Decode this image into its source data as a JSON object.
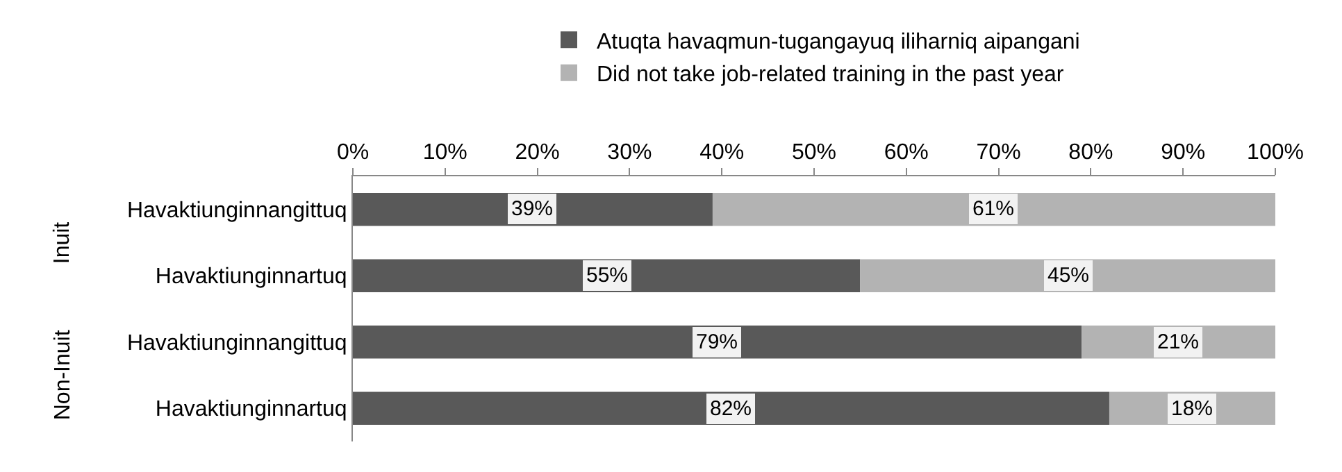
{
  "chart_data": {
    "type": "bar",
    "orientation": "horizontal",
    "stacked": true,
    "categories": [
      "Havaktiunginnangittuq",
      "Havaktiunginnartuq",
      "Havaktiunginnangittuq",
      "Havaktiunginnartuq"
    ],
    "series": [
      {
        "name": "Atuqta havaqmun-tugangayuq iliharniq aipangani",
        "color": "#595959",
        "values": [
          39,
          55,
          79,
          82
        ],
        "value_labels": [
          "39%",
          "55%",
          "79%",
          "82%"
        ]
      },
      {
        "name": "Did not take job-related training in the past year",
        "color": "#b3b3b3",
        "values": [
          61,
          45,
          21,
          18
        ],
        "value_labels": [
          "61%",
          "45%",
          "21%",
          "18%"
        ]
      }
    ],
    "xlim": [
      0,
      100
    ],
    "xticks": [
      {
        "value": 0,
        "label": "0%"
      },
      {
        "value": 10,
        "label": "10%"
      },
      {
        "value": 20,
        "label": "20%"
      },
      {
        "value": 30,
        "label": "30%"
      },
      {
        "value": 40,
        "label": "40%"
      },
      {
        "value": 50,
        "label": "50%"
      },
      {
        "value": 60,
        "label": "60%"
      },
      {
        "value": 70,
        "label": "70%"
      },
      {
        "value": 80,
        "label": "80%"
      },
      {
        "value": 90,
        "label": "90%"
      },
      {
        "value": 100,
        "label": "100%"
      }
    ],
    "annotations": [
      "Inuit",
      "Non-Inuit"
    ],
    "legend": "top",
    "grid": false
  }
}
